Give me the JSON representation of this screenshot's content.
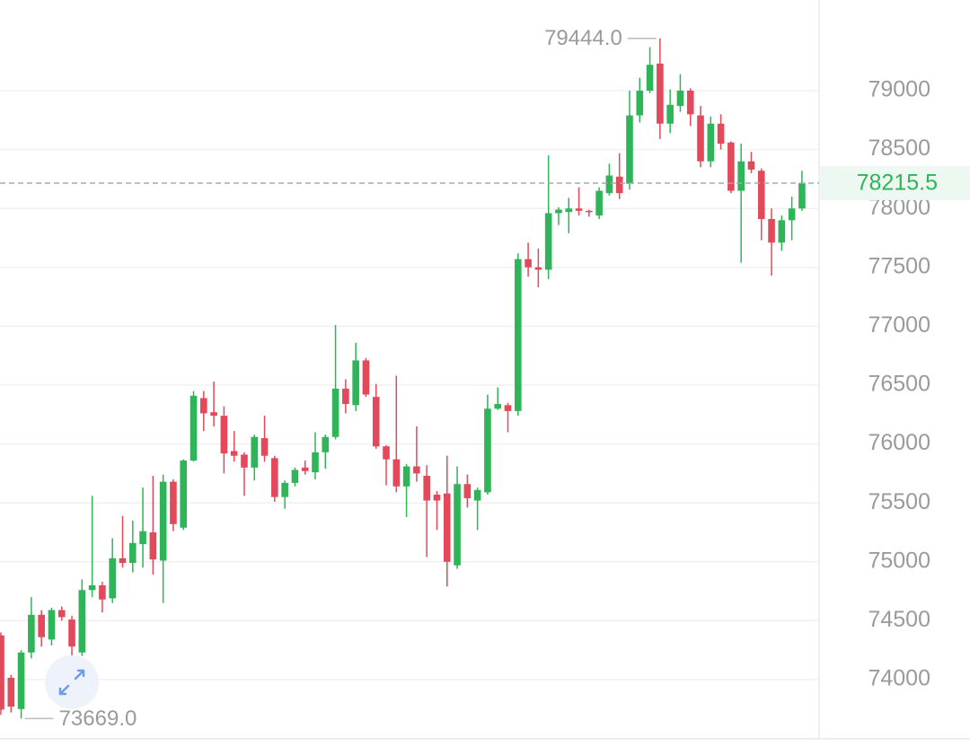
{
  "chart_data": {
    "type": "candlestick",
    "up_color": "#2fb45a",
    "down_color": "#e2495a",
    "ylim": [
      73436,
      79770
    ],
    "yticks": [
      74000,
      74500,
      75000,
      75500,
      76000,
      76500,
      77000,
      77500,
      78000,
      78500,
      79000
    ],
    "grid": true,
    "open": [
      74375,
      74015,
      73750,
      74230,
      74550,
      74340,
      74590,
      74510,
      74230,
      74760,
      74800,
      74690,
      75030,
      74990,
      75150,
      75250,
      75010,
      75680,
      75290,
      75860,
      76390,
      76270,
      76240,
      75940,
      75910,
      75800,
      76050,
      75880,
      75550,
      75670,
      75800,
      75760,
      75930,
      76060,
      76470,
      76330,
      76710,
      76400,
      75980,
      75870,
      75640,
      75810,
      75730,
      75570,
      75580,
      74970,
      75660,
      75520,
      75590,
      76300,
      76330,
      76280,
      77570,
      77500,
      77480,
      77960,
      77970,
      78000,
      77980,
      77940,
      78130,
      78270,
      78210,
      78790,
      79000,
      79230,
      78720,
      78870,
      79000,
      78790,
      78400,
      78720,
      78560,
      78150,
      78400,
      78320,
      77910,
      77710,
      77900,
      78000
    ],
    "high": [
      74400,
      74040,
      74250,
      74700,
      74590,
      74610,
      74620,
      74540,
      74850,
      75560,
      74830,
      75200,
      75390,
      75350,
      75630,
      75730,
      75740,
      75700,
      75870,
      76450,
      76450,
      76530,
      76320,
      76110,
      75930,
      76080,
      76240,
      75900,
      75690,
      75800,
      75860,
      76100,
      76080,
      77010,
      76550,
      76860,
      76730,
      76510,
      75990,
      76580,
      75830,
      76150,
      75820,
      75600,
      75900,
      75810,
      75740,
      75630,
      76420,
      76480,
      76350,
      77620,
      77710,
      77660,
      78450,
      78010,
      78090,
      78180,
      77990,
      78180,
      78380,
      78470,
      79000,
      79110,
      79370,
      79444,
      79010,
      79140,
      79020,
      78870,
      78780,
      78800,
      78570,
      78550,
      78480,
      78340,
      78000,
      77940,
      78100,
      78320
    ],
    "low": [
      73700,
      73720,
      73669,
      74180,
      74280,
      74290,
      74500,
      74080,
      74200,
      74700,
      74570,
      74650,
      74950,
      74910,
      74950,
      74890,
      74650,
      75260,
      75270,
      75850,
      76110,
      76150,
      75750,
      75850,
      75560,
      75690,
      75850,
      75510,
      75450,
      75640,
      75740,
      75700,
      75790,
      76040,
      76260,
      76280,
      76400,
      75960,
      75650,
      75590,
      75380,
      75680,
      75040,
      75270,
      74790,
      74940,
      75460,
      75270,
      75570,
      76290,
      76100,
      76240,
      77420,
      77330,
      77400,
      77860,
      77790,
      77940,
      77930,
      77910,
      78110,
      78080,
      78160,
      78730,
      78980,
      78590,
      78640,
      78820,
      78700,
      78350,
      78350,
      78500,
      78130,
      77540,
      78300,
      77730,
      77430,
      77640,
      77730,
      77980
    ],
    "close": [
      73745,
      73770,
      74230,
      74550,
      74360,
      74590,
      74530,
      74280,
      74760,
      74800,
      74680,
      75030,
      74990,
      75160,
      75260,
      75020,
      75680,
      75320,
      75860,
      76410,
      76260,
      76240,
      75920,
      75900,
      75800,
      76060,
      75900,
      75550,
      75670,
      75780,
      75770,
      75930,
      76060,
      76470,
      76340,
      76710,
      76420,
      75980,
      75870,
      75640,
      75810,
      75750,
      75520,
      75520,
      75000,
      75660,
      75540,
      75610,
      76300,
      76340,
      76280,
      77570,
      77500,
      77480,
      77960,
      77990,
      78000,
      77980,
      77970,
      78150,
      78280,
      78130,
      78790,
      79000,
      79220,
      78720,
      78880,
      79000,
      78800,
      78400,
      78720,
      78550,
      78150,
      78400,
      78330,
      77910,
      77710,
      77900,
      78000,
      78215.5
    ],
    "last_price": 78215.5,
    "max_annotation": {
      "value": 79444,
      "label": "79444.0"
    },
    "min_annotation": {
      "value": 73669,
      "label": "73669.0"
    }
  }
}
